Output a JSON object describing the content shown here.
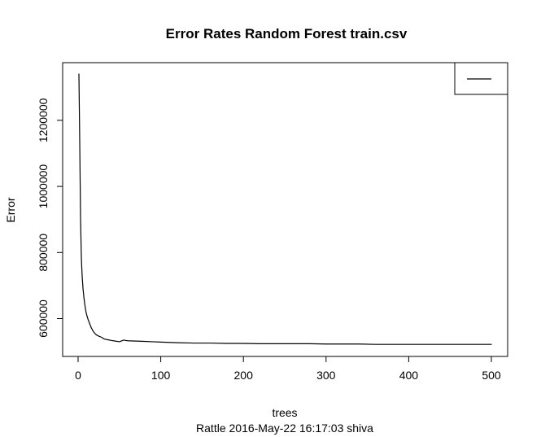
{
  "chart_data": {
    "type": "line",
    "title": "Error Rates Random Forest train.csv",
    "xlabel": "trees",
    "ylabel": "Error",
    "subtitle": "Rattle 2016-May-22 16:17:03 shiva",
    "xlim": [
      1,
      500
    ],
    "ylim": [
      520000,
      1340000
    ],
    "xticks": [
      0,
      100,
      200,
      300,
      400,
      500
    ],
    "yticks": [
      600000,
      800000,
      1000000,
      1200000
    ],
    "xtick_labels": [
      "0",
      "100",
      "200",
      "300",
      "400",
      "500"
    ],
    "ytick_labels": [
      "600000",
      "800000",
      "1000000",
      "1200000"
    ],
    "legend": {
      "position": "top-right",
      "entries": [
        {
          "name": "",
          "color": "#000000"
        }
      ]
    },
    "grid": false,
    "series": [
      {
        "name": "",
        "color": "#000000",
        "x": [
          1,
          2,
          3,
          4,
          5,
          6,
          7,
          8,
          9,
          10,
          12,
          14,
          16,
          18,
          20,
          22,
          25,
          28,
          32,
          36,
          40,
          45,
          50,
          55,
          60,
          70,
          80,
          90,
          100,
          110,
          120,
          140,
          160,
          180,
          200,
          220,
          240,
          260,
          280,
          300,
          320,
          340,
          360,
          380,
          400,
          420,
          440,
          460,
          480,
          500
        ],
        "y": [
          1340000,
          1130000,
          900000,
          780000,
          725000,
          690000,
          665000,
          645000,
          628000,
          615000,
          598000,
          585000,
          572000,
          563000,
          556000,
          551000,
          547000,
          544000,
          538000,
          536000,
          534000,
          532000,
          530000,
          535000,
          533000,
          532000,
          531000,
          530000,
          529000,
          528000,
          527000,
          526000,
          526000,
          525000,
          525000,
          524000,
          524000,
          524000,
          524000,
          523000,
          523000,
          523000,
          522000,
          522000,
          522000,
          522000,
          522000,
          522000,
          522000,
          522000
        ]
      }
    ]
  }
}
